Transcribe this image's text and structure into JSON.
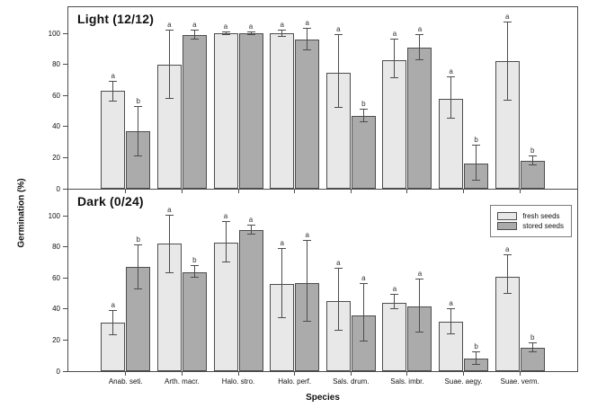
{
  "figure": {
    "y_axis_title": "Germination (%)",
    "x_axis_title": "Species"
  },
  "legend": {
    "entries": [
      {
        "label": "fresh seeds",
        "color": "#e8e8e8"
      },
      {
        "label": "stored seeds",
        "color": "#ababab"
      }
    ]
  },
  "style": {
    "axis_color": "#4d4d4d",
    "fresh_color": "#e8e8e8",
    "stored_color": "#ababab",
    "background": "#ffffff"
  },
  "chart_data": {
    "type": "bar",
    "title": "",
    "xlabel": "Species",
    "ylabel": "Germination (%)",
    "ylim": [
      0,
      117
    ],
    "yticks": [
      0,
      20,
      40,
      60,
      80,
      100
    ],
    "grid": false,
    "legend_position": "upper right of bottom panel",
    "categories": [
      "Anab. seti.",
      "Arth. macr.",
      "Halo. stro.",
      "Halo. perf.",
      "Sals. drum.",
      "Sals. imbr.",
      "Suae. aegy.",
      "Suae. verm."
    ],
    "panels": [
      {
        "title": "Light (12/12)",
        "series": [
          {
            "name": "fresh seeds",
            "color": "#e8e8e8",
            "values": [
              63,
              80,
              100,
              100,
              75,
              83,
              58,
              82
            ],
            "err_low": [
              56,
              58,
              99,
              98,
              52,
              71,
              45,
              57
            ],
            "err_high": [
              69,
              102,
              101,
              102,
              99,
              96,
              72,
              107
            ],
            "letters": [
              "a",
              "a",
              "a",
              "a",
              "a",
              "a",
              "a",
              "a"
            ]
          },
          {
            "name": "stored seeds",
            "color": "#ababab",
            "values": [
              37,
              99,
              100,
              96,
              47,
              91,
              16,
              18
            ],
            "err_low": [
              21,
              96,
              99,
              89,
              43,
              83,
              5,
              15
            ],
            "err_high": [
              53,
              102,
              101,
              103,
              51,
              99,
              28,
              21
            ],
            "letters": [
              "b",
              "a",
              "a",
              "a",
              "b",
              "a",
              "b",
              "b"
            ]
          }
        ]
      },
      {
        "title": "Dark (0/24)",
        "series": [
          {
            "name": "fresh seeds",
            "color": "#e8e8e8",
            "values": [
              31,
              82,
              83,
              56,
              45,
              44,
              32,
              61
            ],
            "err_low": [
              23,
              63,
              70,
              34,
              26,
              40,
              24,
              50
            ],
            "err_high": [
              39,
              100,
              96,
              79,
              66,
              49,
              40,
              75
            ],
            "letters": [
              "a",
              "a",
              "a",
              "a",
              "a",
              "a",
              "a",
              "a"
            ]
          },
          {
            "name": "stored seeds",
            "color": "#ababab",
            "values": [
              67,
              64,
              91,
              57,
              36,
              42,
              8,
              15
            ],
            "err_low": [
              53,
              60,
              88,
              32,
              19,
              25,
              4,
              12
            ],
            "err_high": [
              81,
              68,
              94,
              84,
              56,
              59,
              12,
              18
            ],
            "letters": [
              "b",
              "b",
              "a",
              "a",
              "a",
              "a",
              "b",
              "b"
            ]
          }
        ]
      }
    ]
  }
}
